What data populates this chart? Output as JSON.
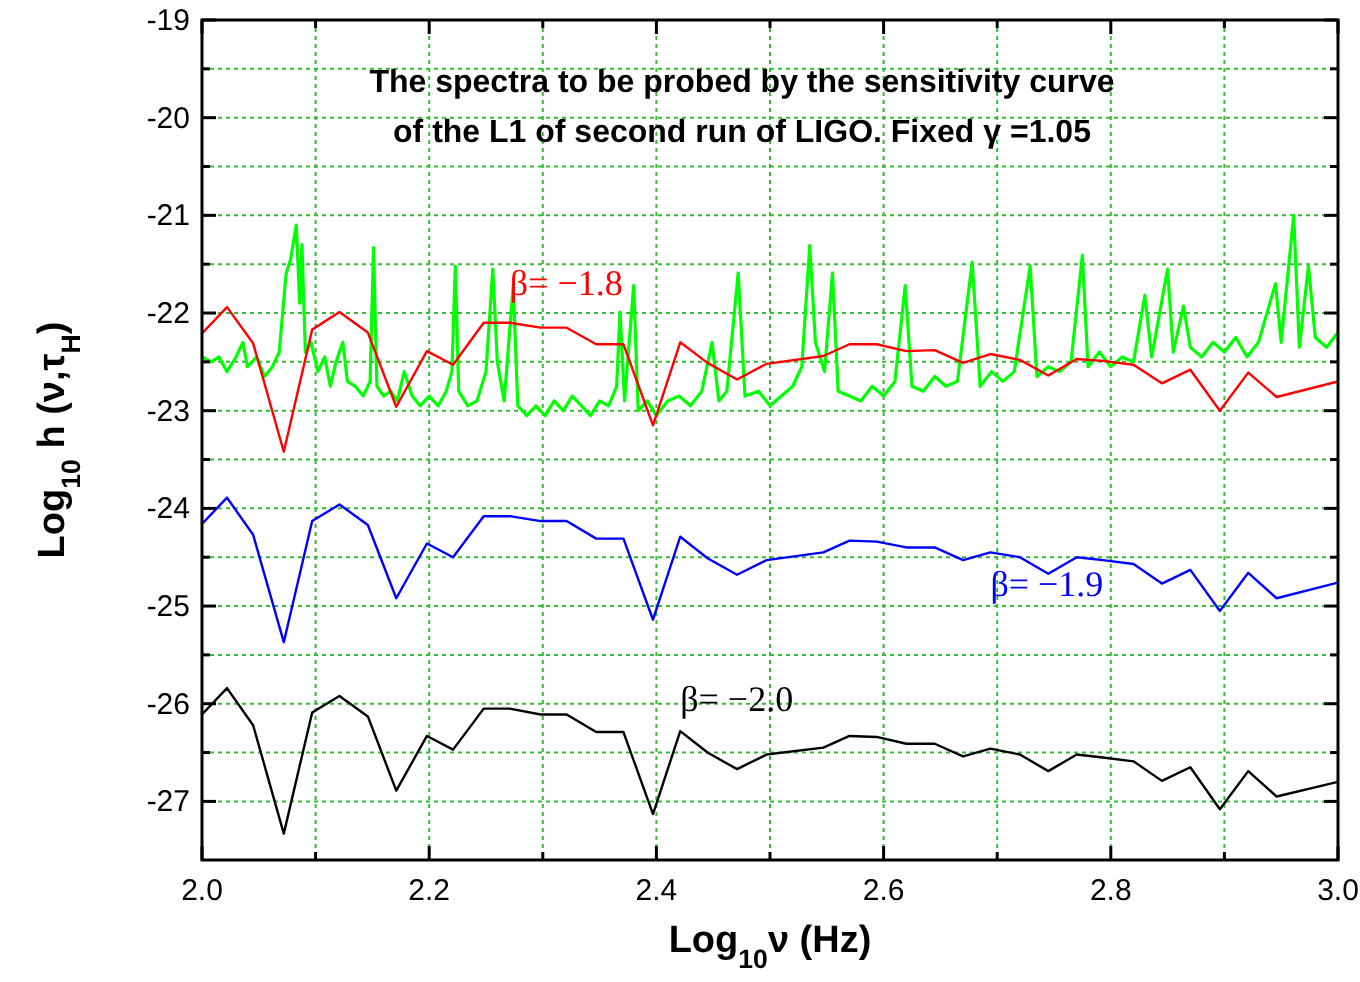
{
  "chart_data": {
    "type": "line",
    "title": "The spectra to be probed by the sensitivity curve\nof the L1 of second run of LIGO. Fixed γ =1.05",
    "xlabel": "Log$_{10}$ν (Hz)",
    "ylabel": "Log$_{10}$ h (ν,τ$_{H}$)",
    "xlim": [
      2,
      3
    ],
    "xticks": [
      {
        "value": 2,
        "label": "2.0"
      },
      {
        "value": 2.1,
        "label": null
      },
      {
        "value": 2.2,
        "label": "2.2"
      },
      {
        "value": 2.3,
        "label": null
      },
      {
        "value": 2.4,
        "label": "2.4"
      },
      {
        "value": 2.5,
        "label": null
      },
      {
        "value": 2.6,
        "label": "2.6"
      },
      {
        "value": 2.7,
        "label": null
      },
      {
        "value": 2.8,
        "label": "2.8"
      },
      {
        "value": 2.9,
        "label": null
      },
      {
        "value": 3,
        "label": "3.0"
      }
    ],
    "ylim": [
      -27.6,
      -19
    ],
    "yticks": [
      -27,
      {
        "value": -26.5,
        "label": null
      },
      -26,
      {
        "value": -25.5,
        "label": null
      },
      -25,
      {
        "value": -24.5,
        "label": null
      },
      -24,
      {
        "value": -23.5,
        "label": null
      },
      -23,
      {
        "value": -22.5,
        "label": null
      },
      -22,
      {
        "value": -21.5,
        "label": null
      },
      -21,
      {
        "value": -20.5,
        "label": null
      },
      -20,
      {
        "value": -19.5,
        "label": null
      },
      -19
    ],
    "grid": true,
    "line_style": "solid",
    "marker": "none",
    "annotations": [
      "β= −1.8",
      "β= −1.9",
      "β= −2.0"
    ],
    "series": [
      {
        "color": "#ff0000",
        "x": [
          2.0,
          2.022,
          2.045,
          2.072,
          2.097,
          2.121,
          2.146,
          2.171,
          2.198,
          2.221,
          2.248,
          2.271,
          2.298,
          2.321,
          2.347,
          2.371,
          2.397,
          2.421,
          2.445,
          2.471,
          2.497,
          2.547,
          2.57,
          2.594,
          2.62,
          2.645,
          2.67,
          2.694,
          2.72,
          2.745,
          2.77,
          2.793,
          2.82,
          2.845,
          2.87,
          2.896,
          2.921,
          2.946,
          3.0
        ],
        "values": [
          -22.21,
          -21.94,
          -22.31,
          -23.42,
          -22.17,
          -21.99,
          -22.2,
          -22.96,
          -22.39,
          -22.53,
          -22.1,
          -22.1,
          -22.15,
          -22.15,
          -22.32,
          -22.32,
          -23.15,
          -22.3,
          -22.51,
          -22.68,
          -22.52,
          -22.44,
          -22.32,
          -22.32,
          -22.39,
          -22.38,
          -22.51,
          -22.42,
          -22.48,
          -22.64,
          -22.47,
          -22.49,
          -22.53,
          -22.72,
          -22.58,
          -23.0,
          -22.61,
          -22.86,
          -22.7
        ]
      },
      {
        "color": "#0000ff",
        "x": [
          2.0,
          2.022,
          2.045,
          2.072,
          2.097,
          2.121,
          2.146,
          2.171,
          2.198,
          2.221,
          2.248,
          2.271,
          2.298,
          2.321,
          2.347,
          2.371,
          2.397,
          2.421,
          2.445,
          2.471,
          2.497,
          2.547,
          2.57,
          2.594,
          2.62,
          2.645,
          2.67,
          2.694,
          2.72,
          2.745,
          2.77,
          2.793,
          2.82,
          2.845,
          2.87,
          2.896,
          2.921,
          2.946,
          3.0
        ],
        "values": [
          -24.16,
          -23.89,
          -24.27,
          -25.37,
          -24.13,
          -23.96,
          -24.17,
          -24.92,
          -24.36,
          -24.5,
          -24.08,
          -24.08,
          -24.13,
          -24.13,
          -24.31,
          -24.31,
          -25.14,
          -24.29,
          -24.51,
          -24.68,
          -24.53,
          -24.45,
          -24.33,
          -24.34,
          -24.4,
          -24.4,
          -24.53,
          -24.45,
          -24.5,
          -24.67,
          -24.5,
          -24.53,
          -24.57,
          -24.77,
          -24.63,
          -25.05,
          -24.66,
          -24.92,
          -24.76
        ]
      },
      {
        "color": "#000000",
        "x": [
          2.0,
          2.022,
          2.045,
          2.072,
          2.097,
          2.121,
          2.146,
          2.171,
          2.198,
          2.221,
          2.248,
          2.271,
          2.298,
          2.321,
          2.347,
          2.371,
          2.397,
          2.421,
          2.445,
          2.471,
          2.497,
          2.547,
          2.57,
          2.594,
          2.62,
          2.645,
          2.67,
          2.694,
          2.72,
          2.745,
          2.77,
          2.793,
          2.82,
          2.845,
          2.87,
          2.896,
          2.921,
          2.946,
          3.0
        ],
        "values": [
          -26.11,
          -25.84,
          -26.22,
          -27.33,
          -26.09,
          -25.92,
          -26.13,
          -26.89,
          -26.33,
          -26.47,
          -26.05,
          -26.05,
          -26.11,
          -26.11,
          -26.29,
          -26.29,
          -27.13,
          -26.28,
          -26.5,
          -26.67,
          -26.52,
          -26.45,
          -26.33,
          -26.34,
          -26.41,
          -26.41,
          -26.54,
          -26.46,
          -26.52,
          -26.69,
          -26.52,
          -26.55,
          -26.59,
          -26.79,
          -26.65,
          -27.08,
          -26.69,
          -26.95,
          -26.8
        ]
      },
      {
        "color": "#00ff00",
        "x": [
          2.0,
          2.008,
          2.015,
          2.022,
          2.03,
          2.036,
          2.04,
          2.048,
          2.055,
          2.062,
          2.068,
          2.074,
          2.078,
          2.083,
          2.086,
          2.088,
          2.091,
          2.096,
          2.102,
          2.108,
          2.113,
          2.118,
          2.124,
          2.128,
          2.135,
          2.142,
          2.148,
          2.151,
          2.154,
          2.16,
          2.166,
          2.172,
          2.178,
          2.185,
          2.192,
          2.2,
          2.208,
          2.215,
          2.22,
          2.223,
          2.226,
          2.234,
          2.242,
          2.25,
          2.256,
          2.26,
          2.266,
          2.274,
          2.278,
          2.286,
          2.294,
          2.302,
          2.31,
          2.318,
          2.326,
          2.334,
          2.342,
          2.35,
          2.358,
          2.365,
          2.368,
          2.372,
          2.38,
          2.384,
          2.392,
          2.4,
          2.41,
          2.42,
          2.43,
          2.44,
          2.449,
          2.455,
          2.462,
          2.472,
          2.478,
          2.49,
          2.5,
          2.51,
          2.52,
          2.528,
          2.535,
          2.54,
          2.548,
          2.555,
          2.56,
          2.57,
          2.58,
          2.59,
          2.6,
          2.61,
          2.619,
          2.625,
          2.635,
          2.645,
          2.655,
          2.665,
          2.678,
          2.685,
          2.695,
          2.705,
          2.715,
          2.729,
          2.735,
          2.745,
          2.755,
          2.765,
          2.775,
          2.78,
          2.79,
          2.8,
          2.81,
          2.82,
          2.83,
          2.836,
          2.85,
          2.855,
          2.864,
          2.87,
          2.88,
          2.89,
          2.9,
          2.91,
          2.92,
          2.93,
          2.945,
          2.95,
          2.961,
          2.966,
          2.974,
          2.98,
          2.99,
          3.0
        ],
        "values": [
          -22.45,
          -22.5,
          -22.45,
          -22.6,
          -22.45,
          -22.3,
          -22.55,
          -22.45,
          -22.65,
          -22.55,
          -22.4,
          -21.6,
          -21.45,
          -21.1,
          -21.9,
          -21.3,
          -22.4,
          -22.3,
          -22.6,
          -22.45,
          -22.75,
          -22.5,
          -22.3,
          -22.7,
          -22.75,
          -22.85,
          -22.7,
          -21.33,
          -22.75,
          -22.85,
          -22.8,
          -22.9,
          -22.6,
          -22.85,
          -22.95,
          -22.85,
          -22.95,
          -22.8,
          -22.6,
          -21.52,
          -22.8,
          -22.95,
          -22.9,
          -22.6,
          -21.55,
          -22.5,
          -22.9,
          -21.72,
          -22.95,
          -23.05,
          -22.95,
          -23.05,
          -22.9,
          -23.0,
          -22.85,
          -22.95,
          -23.05,
          -22.9,
          -22.95,
          -22.75,
          -21.99,
          -22.9,
          -21.72,
          -23.0,
          -22.9,
          -23.05,
          -22.9,
          -22.85,
          -22.95,
          -22.8,
          -22.3,
          -22.9,
          -22.8,
          -21.59,
          -22.85,
          -22.8,
          -22.95,
          -22.85,
          -22.75,
          -22.55,
          -21.31,
          -22.3,
          -22.6,
          -21.59,
          -22.8,
          -22.85,
          -22.9,
          -22.75,
          -22.85,
          -22.7,
          -21.72,
          -22.75,
          -22.8,
          -22.65,
          -22.75,
          -22.7,
          -21.48,
          -22.75,
          -22.6,
          -22.7,
          -22.6,
          -21.52,
          -22.65,
          -22.55,
          -22.6,
          -22.5,
          -21.41,
          -22.55,
          -22.4,
          -22.55,
          -22.45,
          -22.5,
          -21.82,
          -22.45,
          -21.55,
          -22.4,
          -21.93,
          -22.35,
          -22.45,
          -22.3,
          -22.4,
          -22.25,
          -22.45,
          -22.3,
          -21.7,
          -22.3,
          -21.0,
          -22.35,
          -21.52,
          -22.25,
          -22.35,
          -22.2
        ]
      }
    ]
  }
}
